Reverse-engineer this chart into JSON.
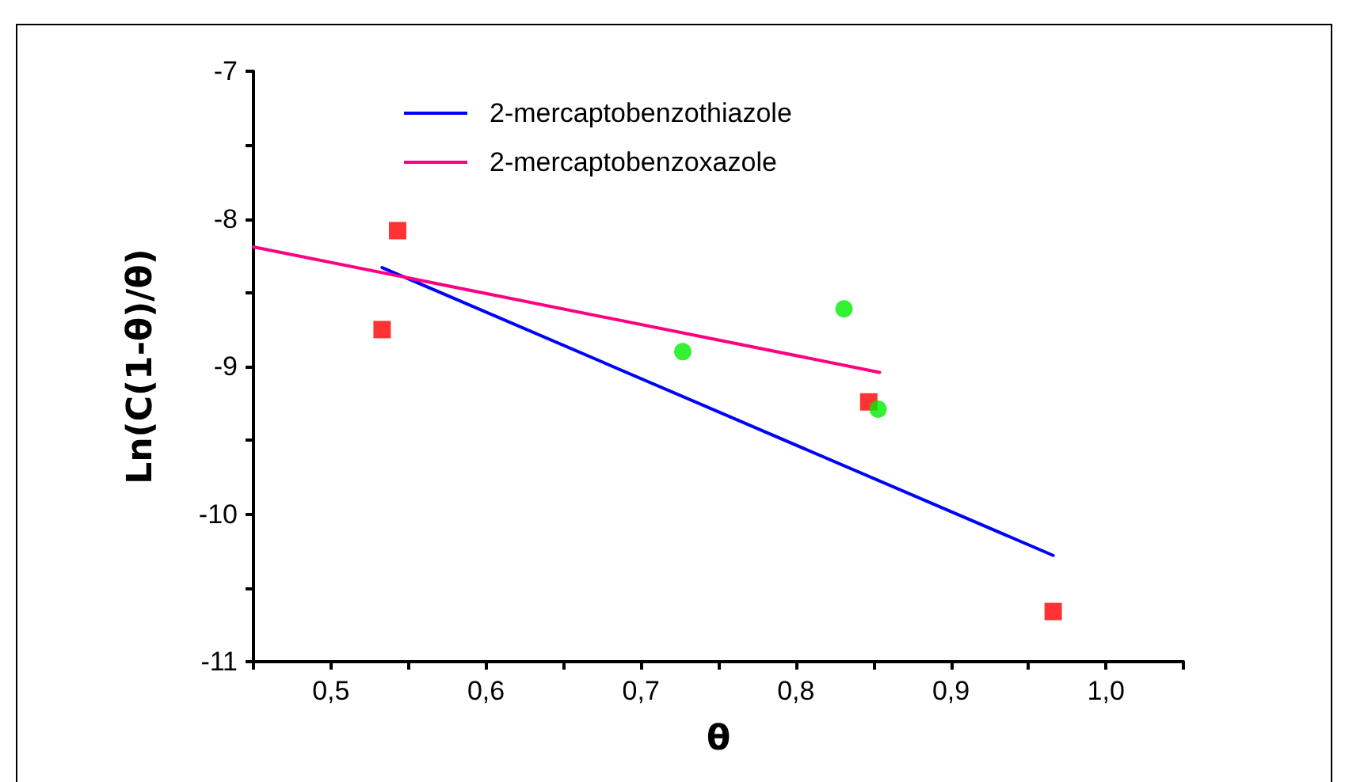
{
  "chart_data": {
    "type": "scatter",
    "xlabel": "θ",
    "ylabel": "Ln(C(1-θ)/θ)",
    "xlim": [
      0.45,
      1.05
    ],
    "xticks": [
      {
        "value": 0.45,
        "label": null
      },
      {
        "value": 0.5,
        "label": "0,5"
      },
      {
        "value": 0.55,
        "label": null
      },
      {
        "value": 0.6,
        "label": "0,6"
      },
      {
        "value": 0.65,
        "label": null
      },
      {
        "value": 0.7,
        "label": "0,7"
      },
      {
        "value": 0.75,
        "label": null
      },
      {
        "value": 0.8,
        "label": "0,8"
      },
      {
        "value": 0.85,
        "label": null
      },
      {
        "value": 0.9,
        "label": "0,9"
      },
      {
        "value": 0.95,
        "label": null
      },
      {
        "value": 1.0,
        "label": "1,0"
      },
      {
        "value": 1.05,
        "label": null
      }
    ],
    "ylim": [
      -11,
      -7
    ],
    "yticks": [
      -11,
      {
        "value": -10.5,
        "label": null
      },
      -10,
      {
        "value": -9.5,
        "label": null
      },
      -9,
      {
        "value": -8.5,
        "label": null
      },
      -8,
      {
        "value": -7.5,
        "label": null
      },
      -7
    ],
    "grid": false,
    "legend": "top left",
    "series": [
      {
        "name": "2-mercaptobenzothiazole",
        "type": "line",
        "color": "#0000ff",
        "x": [
          0.533,
          0.966
        ],
        "values": [
          -8.33,
          -10.28
        ],
        "marker": "none",
        "line_style": "solid"
      },
      {
        "name": "2-mercaptobenzoxazole",
        "type": "line",
        "color": "#ff0080",
        "x": [
          0.45,
          0.854
        ],
        "values": [
          -8.19,
          -9.04
        ],
        "marker": "none",
        "line_style": "solid"
      },
      {
        "color": "#ff0000",
        "x": [
          0.533,
          0.543,
          0.847,
          0.966
        ],
        "values": [
          -8.75,
          -8.08,
          -9.24,
          -10.66
        ],
        "marker": "square"
      },
      {
        "color": "#00ee00",
        "x": [
          0.727,
          0.831,
          0.853
        ],
        "values": [
          -8.9,
          -8.61,
          -9.29
        ],
        "marker": "circle"
      }
    ]
  }
}
